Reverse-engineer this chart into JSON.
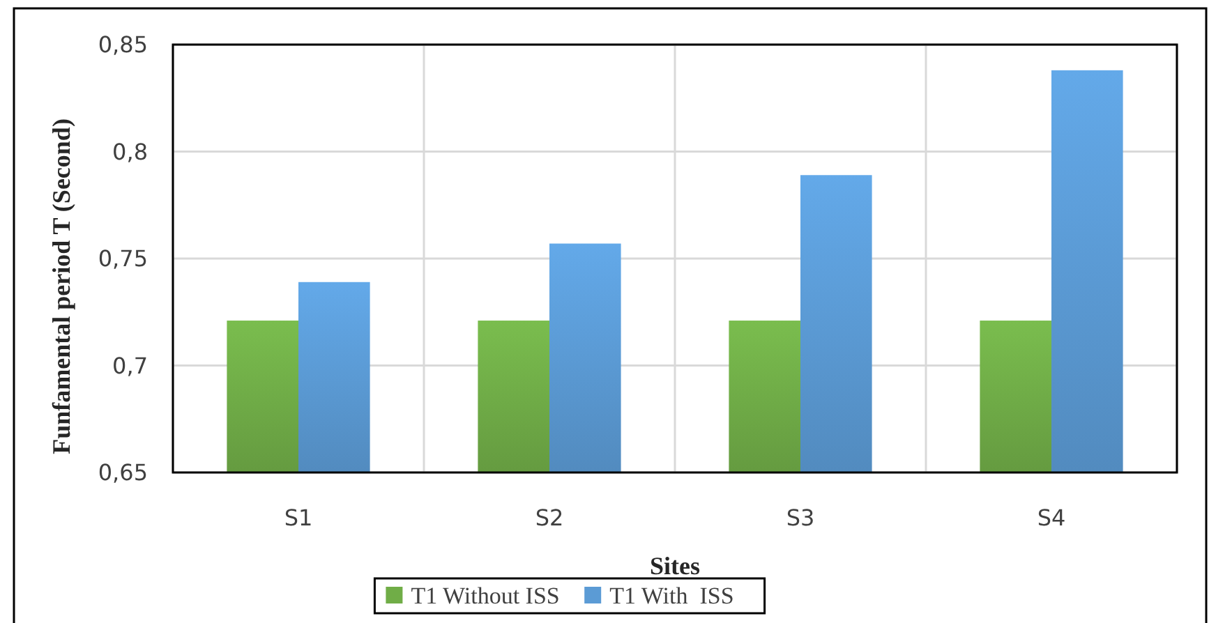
{
  "chart_data": {
    "type": "bar",
    "xlabel": "Sites",
    "ylabel": "Funfamental period T (Second)",
    "categories": [
      "S1",
      "S2",
      "S3",
      "S4"
    ],
    "series": [
      {
        "name": "T1 Without ISS",
        "color": "#70ad47",
        "values": [
          0.721,
          0.721,
          0.721,
          0.721
        ]
      },
      {
        "name": "T1 With  ISS",
        "color": "#5b9bd5",
        "values": [
          0.739,
          0.757,
          0.789,
          0.838
        ]
      }
    ],
    "ylim": [
      0.65,
      0.85
    ],
    "yticks": [
      {
        "value": 0.65,
        "label": "0,65"
      },
      {
        "value": 0.7,
        "label": "0,7"
      },
      {
        "value": 0.75,
        "label": "0,75"
      },
      {
        "value": 0.8,
        "label": "0,8"
      },
      {
        "value": 0.85,
        "label": "0,85"
      }
    ],
    "grid": true,
    "legend": "bottom"
  }
}
